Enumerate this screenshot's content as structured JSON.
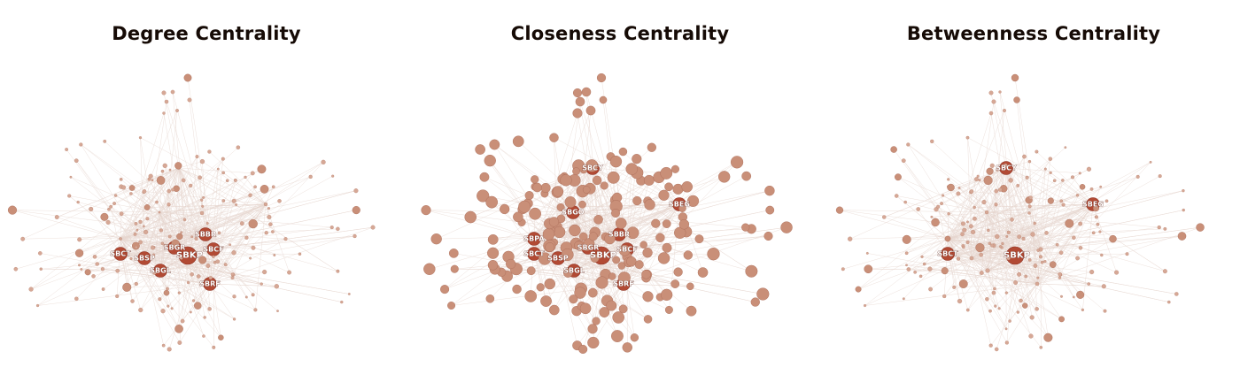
{
  "panels": [
    {
      "id": "degree",
      "title": "Degree Centrality",
      "labeled_nodes": [
        "SBKP",
        "SBGR",
        "SBCT",
        "SBBR",
        "SBSP",
        "SBCF",
        "SBGL",
        "SBRF"
      ]
    },
    {
      "id": "closeness",
      "title": "Closeness Centrality",
      "labeled_nodes": [
        "SBKP",
        "SBGR",
        "SBCF",
        "SBCY",
        "SBEG",
        "SBBR",
        "SBCT",
        "SBSP",
        "SBGL",
        "SBRF",
        "SBPA",
        "SBGO"
      ]
    },
    {
      "id": "betweenness",
      "title": "Betweenness Centrality",
      "labeled_nodes": [
        "SBKP",
        "SBCY",
        "SBEG",
        "SBCT"
      ]
    }
  ],
  "colors": {
    "title": "#160b06",
    "node_high": "#b24a34",
    "node_mid": "#c98f78",
    "node_low": "#d6a896",
    "edge": "#e6d6cf"
  }
}
